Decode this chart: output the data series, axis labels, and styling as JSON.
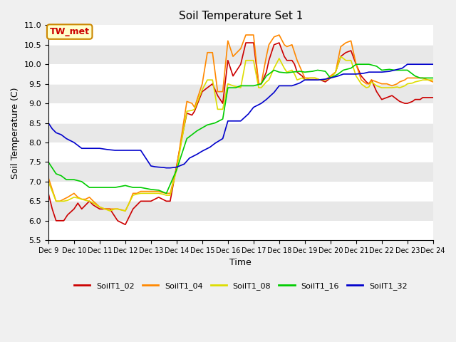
{
  "title": "Soil Temperature Set 1",
  "xlabel": "Time",
  "ylabel": "Soil Temperature (C)",
  "ylim": [
    5.5,
    11.0
  ],
  "xlim": [
    9,
    24
  ],
  "xtick_labels": [
    "Dec 9",
    "Dec 10",
    "Dec 11",
    "Dec 12",
    "Dec 13",
    "Dec 14",
    "Dec 15",
    "Dec 16",
    "Dec 17",
    "Dec 18",
    "Dec 19",
    "Dec 20",
    "Dec 21",
    "Dec 22",
    "Dec 23",
    "Dec 24"
  ],
  "ytick_values": [
    5.5,
    6.0,
    6.5,
    7.0,
    7.5,
    8.0,
    8.5,
    9.0,
    9.5,
    10.0,
    10.5,
    11.0
  ],
  "annotation_label": "TW_met",
  "annotation_color": "#cc0000",
  "annotation_bg": "#ffffcc",
  "annotation_border": "#cc8800",
  "band_colors": [
    "#ffffff",
    "#e8e8e8"
  ],
  "series": {
    "SoilT1_02": {
      "color": "#cc0000",
      "x": [
        9,
        9.15,
        9.3,
        9.45,
        9.6,
        9.75,
        10.0,
        10.15,
        10.3,
        10.45,
        10.6,
        10.75,
        11.0,
        11.2,
        11.4,
        11.6,
        11.7,
        11.85,
        12.0,
        12.15,
        12.3,
        12.45,
        12.6,
        12.75,
        13.0,
        13.15,
        13.3,
        13.45,
        13.6,
        13.75,
        14.0,
        14.2,
        14.4,
        14.6,
        14.7,
        14.85,
        15.0,
        15.2,
        15.4,
        15.6,
        15.8,
        16.0,
        16.2,
        16.5,
        16.7,
        17.0,
        17.2,
        17.3,
        17.5,
        17.6,
        17.8,
        18.0,
        18.2,
        18.3,
        18.5,
        18.6,
        18.7,
        18.9,
        19.0,
        19.2,
        19.4,
        19.6,
        19.8,
        20.0,
        20.2,
        20.4,
        20.6,
        20.8,
        21.0,
        21.2,
        21.4,
        21.5,
        21.6,
        21.8,
        22.0,
        22.2,
        22.4,
        22.6,
        22.7,
        22.9,
        23.0,
        23.2,
        23.3,
        23.5,
        23.6,
        23.8,
        24.0
      ],
      "y": [
        6.7,
        6.3,
        6.0,
        6.0,
        6.0,
        6.15,
        6.3,
        6.45,
        6.3,
        6.4,
        6.5,
        6.4,
        6.3,
        6.3,
        6.3,
        6.1,
        6.0,
        5.95,
        5.9,
        6.1,
        6.3,
        6.4,
        6.5,
        6.5,
        6.5,
        6.55,
        6.6,
        6.55,
        6.5,
        6.5,
        7.4,
        8.1,
        8.75,
        8.7,
        8.8,
        9.05,
        9.3,
        9.4,
        9.5,
        9.2,
        9.0,
        10.1,
        9.7,
        10.0,
        10.55,
        10.55,
        9.5,
        9.5,
        9.8,
        10.1,
        10.5,
        10.55,
        10.2,
        10.1,
        10.1,
        10.0,
        9.8,
        9.7,
        9.6,
        9.6,
        9.6,
        9.6,
        9.55,
        9.65,
        9.8,
        10.2,
        10.3,
        10.35,
        10.0,
        9.7,
        9.55,
        9.5,
        9.6,
        9.3,
        9.1,
        9.15,
        9.2,
        9.1,
        9.05,
        9.0,
        9.0,
        9.05,
        9.1,
        9.1,
        9.15,
        9.15,
        9.15
      ]
    },
    "SoilT1_04": {
      "color": "#ff8800",
      "x": [
        9,
        9.15,
        9.3,
        9.45,
        9.6,
        9.75,
        10.0,
        10.15,
        10.3,
        10.45,
        10.6,
        10.75,
        11.0,
        11.2,
        11.4,
        11.6,
        11.7,
        11.85,
        12.0,
        12.15,
        12.3,
        12.45,
        12.6,
        12.75,
        13.0,
        13.15,
        13.3,
        13.45,
        13.6,
        13.75,
        14.0,
        14.2,
        14.4,
        14.6,
        14.7,
        14.85,
        15.0,
        15.2,
        15.4,
        15.6,
        15.8,
        16.0,
        16.2,
        16.5,
        16.7,
        17.0,
        17.2,
        17.3,
        17.5,
        17.6,
        17.8,
        18.0,
        18.2,
        18.3,
        18.5,
        18.6,
        18.7,
        18.9,
        19.0,
        19.2,
        19.4,
        19.6,
        19.8,
        20.0,
        20.2,
        20.4,
        20.6,
        20.8,
        21.0,
        21.2,
        21.4,
        21.5,
        21.6,
        21.8,
        22.0,
        22.2,
        22.4,
        22.6,
        22.7,
        22.9,
        23.0,
        23.2,
        23.3,
        23.5,
        23.6,
        23.8,
        24.0
      ],
      "y": [
        7.1,
        6.8,
        6.5,
        6.5,
        6.55,
        6.6,
        6.7,
        6.6,
        6.55,
        6.55,
        6.6,
        6.5,
        6.35,
        6.3,
        6.3,
        6.3,
        6.3,
        6.28,
        6.25,
        6.45,
        6.7,
        6.7,
        6.75,
        6.75,
        6.75,
        6.75,
        6.75,
        6.72,
        6.7,
        6.7,
        7.35,
        8.2,
        9.05,
        9.0,
        8.9,
        9.2,
        9.5,
        10.3,
        10.3,
        9.3,
        9.3,
        10.6,
        10.2,
        10.4,
        10.75,
        10.75,
        9.5,
        9.5,
        10.2,
        10.5,
        10.7,
        10.75,
        10.5,
        10.45,
        10.5,
        10.3,
        10.1,
        9.8,
        9.65,
        9.65,
        9.65,
        9.6,
        9.6,
        9.7,
        9.8,
        10.45,
        10.55,
        10.6,
        10.0,
        9.6,
        9.5,
        9.5,
        9.6,
        9.55,
        9.5,
        9.5,
        9.45,
        9.5,
        9.55,
        9.6,
        9.65,
        9.65,
        9.65,
        9.65,
        9.65,
        9.6,
        9.55
      ]
    },
    "SoilT1_08": {
      "color": "#dddd00",
      "x": [
        9,
        9.15,
        9.3,
        9.45,
        9.6,
        9.75,
        10.0,
        10.15,
        10.3,
        10.45,
        10.6,
        10.75,
        11.0,
        11.2,
        11.4,
        11.6,
        11.7,
        11.85,
        12.0,
        12.15,
        12.3,
        12.45,
        12.6,
        12.75,
        13.0,
        13.15,
        13.3,
        13.45,
        13.6,
        13.75,
        14.0,
        14.2,
        14.4,
        14.6,
        14.7,
        14.85,
        15.0,
        15.2,
        15.4,
        15.6,
        15.8,
        16.0,
        16.2,
        16.5,
        16.7,
        17.0,
        17.2,
        17.3,
        17.5,
        17.6,
        17.8,
        18.0,
        18.2,
        18.3,
        18.5,
        18.6,
        18.7,
        18.9,
        19.0,
        19.2,
        19.4,
        19.6,
        19.8,
        20.0,
        20.2,
        20.4,
        20.6,
        20.8,
        21.0,
        21.2,
        21.4,
        21.5,
        21.6,
        21.8,
        22.0,
        22.2,
        22.4,
        22.6,
        22.7,
        22.9,
        23.0,
        23.2,
        23.3,
        23.5,
        23.6,
        23.8,
        24.0
      ],
      "y": [
        7.0,
        6.75,
        6.5,
        6.5,
        6.5,
        6.52,
        6.6,
        6.58,
        6.55,
        6.52,
        6.5,
        6.45,
        6.35,
        6.3,
        6.25,
        6.3,
        6.3,
        6.27,
        6.25,
        6.45,
        6.65,
        6.68,
        6.7,
        6.7,
        6.7,
        6.7,
        6.7,
        6.68,
        6.65,
        6.65,
        7.3,
        8.05,
        8.8,
        8.82,
        8.85,
        9.1,
        9.35,
        9.6,
        9.6,
        8.85,
        8.85,
        9.5,
        9.45,
        9.4,
        10.1,
        10.1,
        9.4,
        9.4,
        9.55,
        9.6,
        9.9,
        10.15,
        9.9,
        9.8,
        9.85,
        9.75,
        9.6,
        9.65,
        9.6,
        9.65,
        9.65,
        9.6,
        9.6,
        9.65,
        9.8,
        10.2,
        10.1,
        10.1,
        9.7,
        9.5,
        9.4,
        9.42,
        9.55,
        9.45,
        9.4,
        9.4,
        9.4,
        9.42,
        9.4,
        9.45,
        9.5,
        9.52,
        9.55,
        9.58,
        9.6,
        9.6,
        9.6
      ]
    },
    "SoilT1_16": {
      "color": "#00cc00",
      "x": [
        9,
        9.15,
        9.3,
        9.5,
        9.7,
        10.0,
        10.3,
        10.6,
        11.0,
        11.3,
        11.6,
        12.0,
        12.3,
        12.6,
        13.0,
        13.3,
        13.6,
        14.0,
        14.4,
        14.8,
        15.2,
        15.5,
        15.8,
        16.0,
        16.3,
        16.5,
        16.8,
        17.0,
        17.3,
        17.5,
        17.8,
        18.0,
        18.3,
        18.5,
        18.8,
        19.0,
        19.3,
        19.5,
        19.8,
        20.0,
        20.3,
        20.5,
        20.8,
        21.0,
        21.3,
        21.5,
        21.8,
        22.0,
        22.3,
        22.5,
        22.8,
        23.0,
        23.3,
        23.5,
        23.8,
        24.0
      ],
      "y": [
        7.5,
        7.35,
        7.2,
        7.15,
        7.05,
        7.05,
        7.0,
        6.85,
        6.85,
        6.85,
        6.85,
        6.9,
        6.85,
        6.85,
        6.8,
        6.78,
        6.7,
        7.3,
        8.1,
        8.3,
        8.45,
        8.5,
        8.6,
        9.4,
        9.4,
        9.45,
        9.45,
        9.45,
        9.5,
        9.7,
        9.85,
        9.8,
        9.78,
        9.8,
        9.82,
        9.8,
        9.82,
        9.85,
        9.82,
        9.65,
        9.75,
        9.85,
        9.9,
        10.0,
        10.0,
        10.0,
        9.95,
        9.85,
        9.87,
        9.85,
        9.85,
        9.85,
        9.7,
        9.65,
        9.65,
        9.65
      ]
    },
    "SoilT1_32": {
      "color": "#0000cc",
      "x": [
        9,
        9.15,
        9.3,
        9.5,
        9.7,
        10.0,
        10.3,
        10.6,
        11.0,
        11.3,
        11.6,
        12.0,
        12.3,
        12.6,
        13.0,
        13.15,
        13.3,
        13.5,
        13.6,
        13.75,
        14.0,
        14.3,
        14.5,
        14.8,
        15.0,
        15.3,
        15.5,
        15.8,
        16.0,
        16.3,
        16.5,
        16.8,
        17.0,
        17.3,
        17.5,
        17.8,
        18.0,
        18.3,
        18.5,
        18.8,
        19.0,
        19.3,
        19.5,
        19.8,
        20.0,
        20.3,
        20.5,
        20.8,
        21.0,
        21.3,
        21.5,
        21.8,
        22.0,
        22.3,
        22.5,
        22.8,
        23.0,
        23.3,
        23.5,
        23.8,
        24.0
      ],
      "y": [
        8.5,
        8.35,
        8.25,
        8.2,
        8.1,
        8.0,
        7.85,
        7.85,
        7.85,
        7.82,
        7.8,
        7.8,
        7.8,
        7.8,
        7.4,
        7.38,
        7.37,
        7.36,
        7.35,
        7.35,
        7.37,
        7.45,
        7.6,
        7.7,
        7.78,
        7.88,
        7.98,
        8.1,
        8.55,
        8.55,
        8.55,
        8.73,
        8.9,
        9.0,
        9.1,
        9.28,
        9.45,
        9.45,
        9.45,
        9.52,
        9.6,
        9.6,
        9.6,
        9.62,
        9.65,
        9.7,
        9.75,
        9.75,
        9.75,
        9.77,
        9.8,
        9.8,
        9.8,
        9.82,
        9.85,
        9.9,
        10.0,
        10.0,
        10.0,
        10.0,
        10.0
      ]
    }
  },
  "bg_color": "#f0f0f0",
  "plot_bg_color": "#f0f0f0",
  "linewidth": 1.2
}
